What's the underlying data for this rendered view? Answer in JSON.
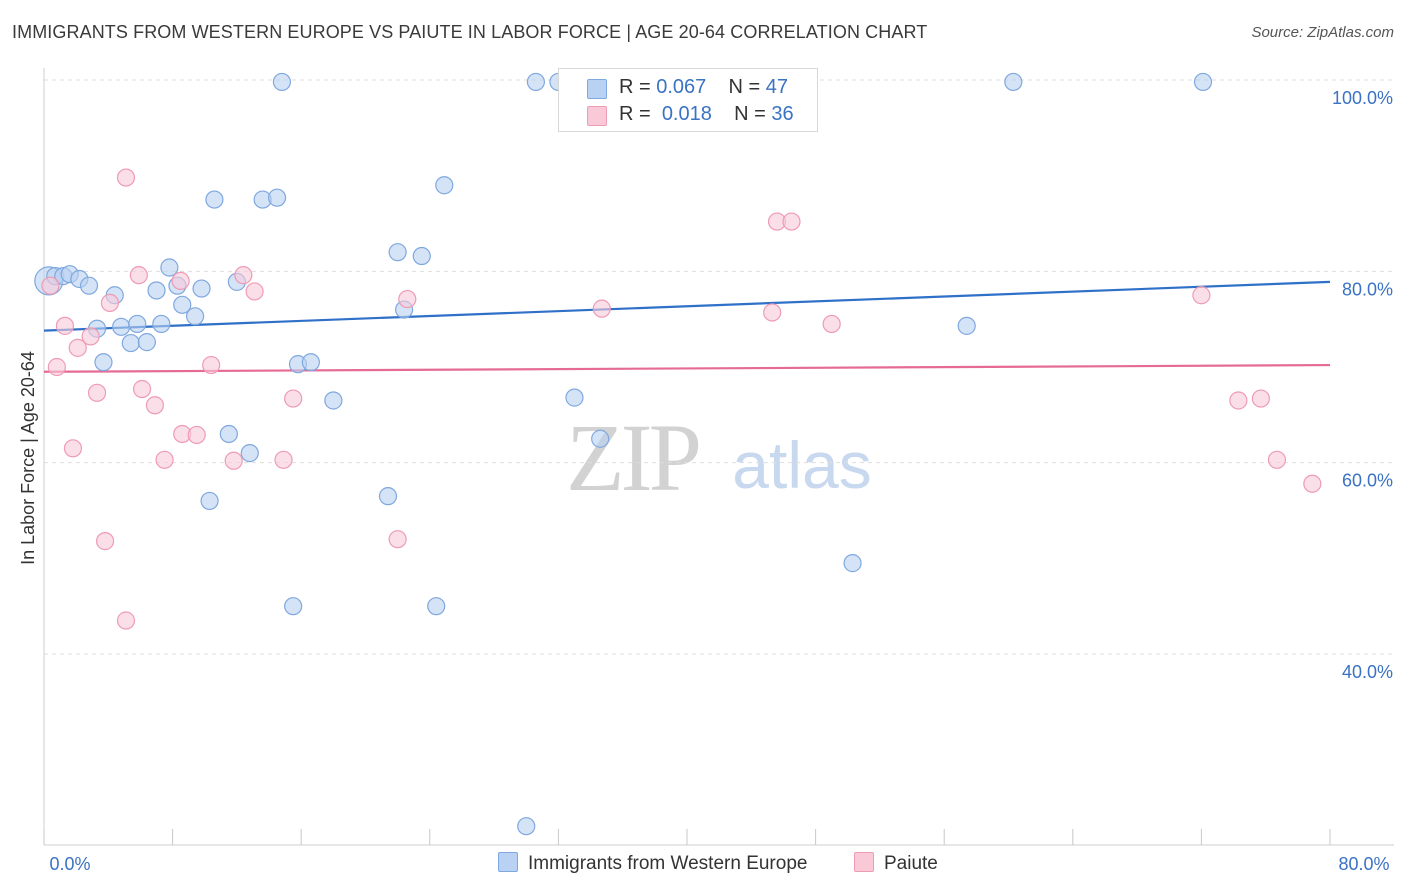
{
  "chart_data": {
    "type": "scatter",
    "title": "IMMIGRANTS FROM WESTERN EUROPE VS PAIUTE IN LABOR FORCE | AGE 20-64 CORRELATION CHART",
    "source": "Source: ZipAtlas.com",
    "xlabel": "",
    "ylabel": "In Labor Force | Age 20-64",
    "xlim": [
      0,
      80
    ],
    "ylim": [
      22,
      102
    ],
    "x_tick_labels": [
      "0.0%",
      "80.0%"
    ],
    "y_ticks": [
      40,
      60,
      80,
      100
    ],
    "y_tick_labels": [
      "40.0%",
      "60.0%",
      "80.0%",
      "100.0%"
    ],
    "grid": true,
    "watermark": {
      "zip": "ZIP",
      "atlas": "atlas"
    },
    "legend_stats": [
      {
        "r_label": "R =",
        "r_value": "0.067",
        "n_label": "N =",
        "n_value": "47"
      },
      {
        "r_label": "R =",
        "r_value": "0.018",
        "n_label": "N =",
        "n_value": "36"
      }
    ],
    "series": [
      {
        "name": "Immigrants from Western Europe",
        "fill": "#b9d1f2",
        "stroke": "#7fa8df",
        "trend_color": "#2f70c8",
        "trend": {
          "x": [
            0,
            80
          ],
          "y": [
            73.8,
            78.9
          ]
        },
        "points": [
          [
            0.3,
            79.0
          ],
          [
            0.7,
            79.5
          ],
          [
            1.2,
            79.5
          ],
          [
            1.6,
            79.7
          ],
          [
            2.2,
            79.2
          ],
          [
            2.8,
            78.5
          ],
          [
            3.3,
            74.0
          ],
          [
            3.7,
            70.5
          ],
          [
            4.4,
            77.5
          ],
          [
            4.8,
            74.2
          ],
          [
            5.4,
            72.5
          ],
          [
            5.8,
            74.5
          ],
          [
            6.4,
            72.6
          ],
          [
            7.0,
            78.0
          ],
          [
            7.3,
            74.5
          ],
          [
            7.8,
            80.4
          ],
          [
            8.3,
            78.5
          ],
          [
            8.6,
            76.5
          ],
          [
            9.4,
            75.3
          ],
          [
            9.8,
            78.2
          ],
          [
            10.6,
            87.5
          ],
          [
            11.5,
            63.0
          ],
          [
            12.0,
            78.9
          ],
          [
            12.8,
            61.0
          ],
          [
            13.6,
            87.5
          ],
          [
            14.5,
            87.7
          ],
          [
            14.8,
            99.8
          ],
          [
            15.5,
            45.0
          ],
          [
            15.8,
            70.3
          ],
          [
            16.6,
            70.5
          ],
          [
            18.0,
            66.5
          ],
          [
            21.4,
            56.5
          ],
          [
            22.0,
            82.0
          ],
          [
            22.4,
            76.0
          ],
          [
            23.5,
            81.6
          ],
          [
            24.4,
            45.0
          ],
          [
            24.9,
            89.0
          ],
          [
            30.0,
            22.0
          ],
          [
            30.6,
            99.8
          ],
          [
            32.0,
            99.8
          ],
          [
            33.0,
            66.8
          ],
          [
            34.6,
            62.5
          ],
          [
            50.3,
            49.5
          ],
          [
            57.4,
            74.3
          ],
          [
            60.3,
            99.8
          ],
          [
            72.1,
            99.8
          ],
          [
            10.3,
            56.0
          ]
        ]
      },
      {
        "name": "Paiute",
        "fill": "#f9c9d8",
        "stroke": "#ee9bb4",
        "trend_color": "#e56b95",
        "trend": {
          "x": [
            0,
            80
          ],
          "y": [
            69.5,
            70.2
          ]
        },
        "points": [
          [
            0.4,
            78.5
          ],
          [
            0.8,
            70.0
          ],
          [
            1.3,
            74.3
          ],
          [
            1.8,
            61.5
          ],
          [
            2.1,
            72.0
          ],
          [
            2.9,
            73.2
          ],
          [
            3.3,
            67.3
          ],
          [
            3.8,
            51.8
          ],
          [
            4.1,
            76.7
          ],
          [
            5.1,
            43.5
          ],
          [
            5.1,
            89.8
          ],
          [
            5.9,
            79.6
          ],
          [
            6.1,
            67.7
          ],
          [
            6.9,
            66.0
          ],
          [
            7.5,
            60.3
          ],
          [
            8.5,
            79.0
          ],
          [
            8.6,
            63.0
          ],
          [
            9.5,
            62.9
          ],
          [
            10.4,
            70.2
          ],
          [
            11.8,
            60.2
          ],
          [
            12.4,
            79.6
          ],
          [
            13.1,
            77.9
          ],
          [
            14.9,
            60.3
          ],
          [
            15.5,
            66.7
          ],
          [
            22.0,
            52.0
          ],
          [
            22.6,
            77.1
          ],
          [
            34.7,
            76.1
          ],
          [
            45.3,
            75.7
          ],
          [
            45.6,
            85.2
          ],
          [
            46.5,
            85.2
          ],
          [
            49.0,
            74.5
          ],
          [
            72.0,
            77.5
          ],
          [
            74.3,
            66.5
          ],
          [
            75.7,
            66.7
          ],
          [
            76.7,
            60.3
          ],
          [
            78.9,
            57.8
          ]
        ]
      }
    ]
  }
}
